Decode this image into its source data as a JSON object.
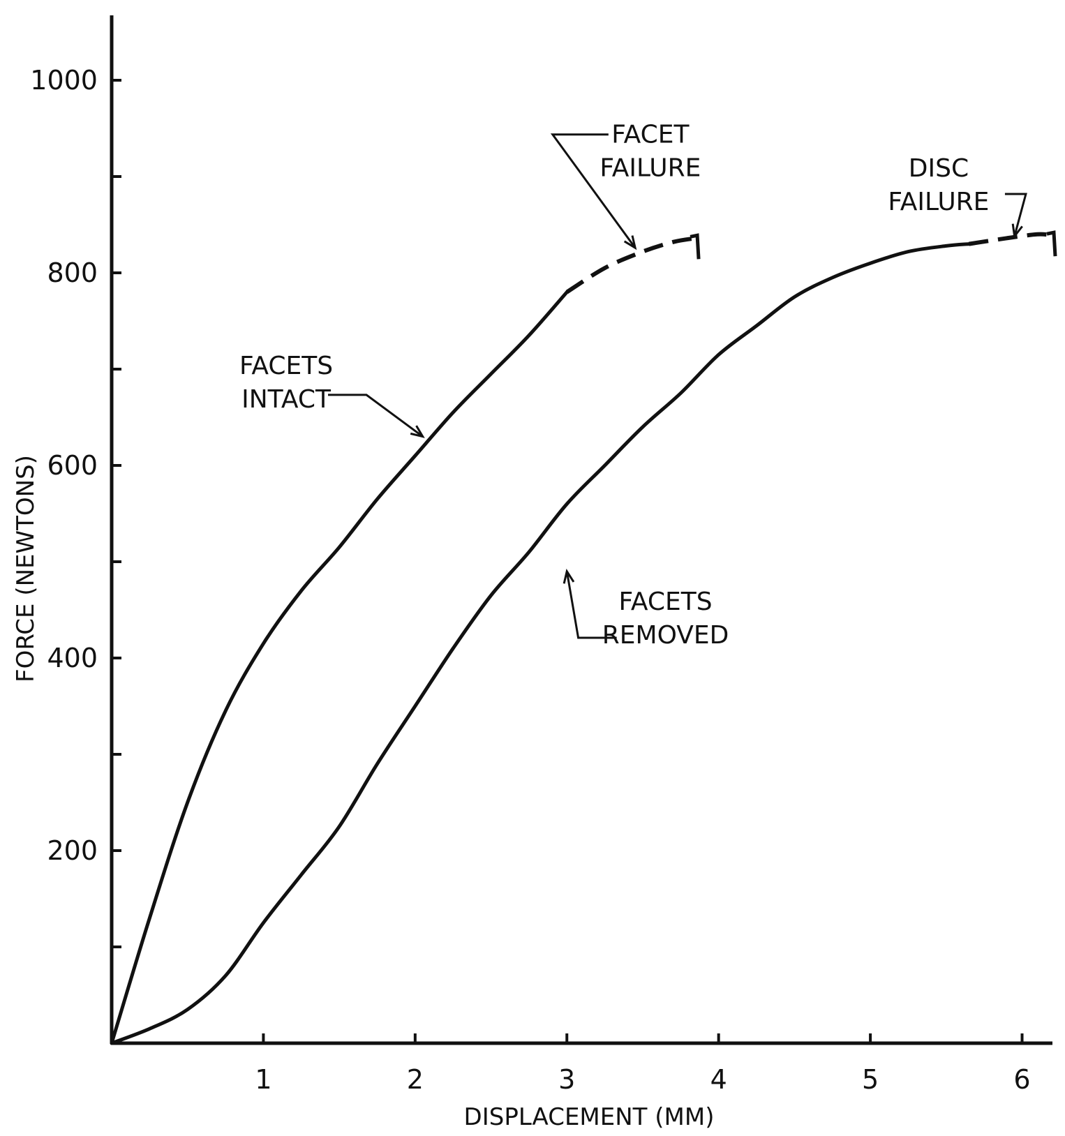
{
  "chart_data": {
    "type": "line",
    "xlabel": "DISPLACEMENT (MM)",
    "ylabel": "FORCE (NEWTONS)",
    "xlim": [
      0,
      6.2
    ],
    "ylim": [
      0,
      1000
    ],
    "x_ticks": [
      1,
      2,
      3,
      4,
      5,
      6
    ],
    "x_tick_labels": [
      "1",
      "2",
      "3",
      "4",
      "5",
      "6"
    ],
    "y_ticks": [
      100,
      200,
      300,
      400,
      500,
      600,
      700,
      800,
      900,
      1000
    ],
    "y_tick_labels": [
      "",
      "200",
      "",
      "400",
      "",
      "600",
      "",
      "800",
      "",
      "1000"
    ],
    "grid": false,
    "series": [
      {
        "name": "FACETS INTACT",
        "color": "#111111",
        "solid": [
          [
            0,
            0
          ],
          [
            0.25,
            130
          ],
          [
            0.5,
            250
          ],
          [
            0.75,
            345
          ],
          [
            1.0,
            415
          ],
          [
            1.25,
            470
          ],
          [
            1.5,
            515
          ],
          [
            1.75,
            565
          ],
          [
            2.0,
            610
          ],
          [
            2.25,
            655
          ],
          [
            2.5,
            695
          ],
          [
            2.75,
            735
          ],
          [
            3.0,
            780
          ]
        ],
        "dashed": [
          [
            3.0,
            780
          ],
          [
            3.25,
            805
          ],
          [
            3.5,
            822
          ],
          [
            3.7,
            832
          ],
          [
            3.85,
            836
          ]
        ],
        "end_mark": [
          3.85,
          836
        ]
      },
      {
        "name": "FACETS REMOVED",
        "color": "#111111",
        "solid": [
          [
            0,
            0
          ],
          [
            0.25,
            15
          ],
          [
            0.5,
            35
          ],
          [
            0.75,
            70
          ],
          [
            1.0,
            125
          ],
          [
            1.25,
            175
          ],
          [
            1.5,
            225
          ],
          [
            1.75,
            290
          ],
          [
            2.0,
            350
          ],
          [
            2.25,
            410
          ],
          [
            2.5,
            465
          ],
          [
            2.75,
            510
          ],
          [
            3.0,
            560
          ],
          [
            3.25,
            600
          ],
          [
            3.5,
            640
          ],
          [
            3.75,
            675
          ],
          [
            4.0,
            715
          ],
          [
            4.25,
            745
          ],
          [
            4.5,
            775
          ],
          [
            4.75,
            795
          ],
          [
            5.0,
            810
          ],
          [
            5.25,
            822
          ],
          [
            5.5,
            828
          ],
          [
            5.65,
            830
          ]
        ],
        "dashed": [
          [
            5.65,
            830
          ],
          [
            5.9,
            836
          ],
          [
            6.1,
            840
          ],
          [
            6.2,
            839
          ]
        ],
        "end_mark": [
          6.2,
          839
        ]
      }
    ],
    "annotations": [
      {
        "id": "facet-failure",
        "lines": [
          "FACET",
          "FAILURE"
        ],
        "text_at": [
          3.55,
          935
        ],
        "points_to": [
          3.45,
          826
        ]
      },
      {
        "id": "disc-failure",
        "lines": [
          "DISC",
          "FAILURE"
        ],
        "text_at": [
          5.45,
          900
        ],
        "points_to": [
          5.95,
          838
        ]
      },
      {
        "id": "facets-intact",
        "lines": [
          "FACETS",
          "INTACT"
        ],
        "text_at": [
          1.15,
          695
        ],
        "points_to": [
          2.05,
          630
        ]
      },
      {
        "id": "facets-removed",
        "lines": [
          "FACETS",
          "REMOVED"
        ],
        "text_at": [
          3.65,
          450
        ],
        "points_to": [
          3.0,
          490
        ]
      }
    ]
  }
}
